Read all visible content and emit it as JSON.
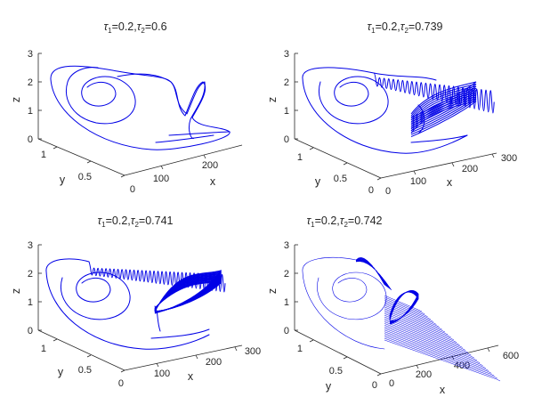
{
  "figure": {
    "background": "#ffffff",
    "trajectory_color": "#0000e6"
  },
  "chart_data": [
    {
      "type": "line3d",
      "title": "τ1=0.2,τ2=0.6",
      "title_parts": {
        "tau1_sym": "τ",
        "tau1_sub": "1",
        "tau1_val": "=0.2,",
        "tau2_sym": "τ",
        "tau2_sub": "2",
        "tau2_val": "=0.6"
      },
      "xlabel": "x",
      "ylabel": "y",
      "zlabel": "z",
      "xlim": [
        0,
        250
      ],
      "xticks": [
        0,
        100,
        200
      ],
      "xtick_labels": [
        "0",
        "100",
        "200"
      ],
      "ylim": [
        0,
        1.3
      ],
      "yticks": [
        0,
        0.5,
        1
      ],
      "ytick_labels": [
        "0",
        "0.5",
        "1"
      ],
      "zlim": [
        0,
        3
      ],
      "zticks": [
        0,
        1,
        2,
        3
      ],
      "ztick_labels": [
        "0",
        "1",
        "2",
        "3"
      ],
      "regime": "periodic (single tail excursion)",
      "spiral_x_range_approx": [
        0,
        230
      ]
    },
    {
      "type": "line3d",
      "title": "τ1=0.2,τ2=0.739",
      "title_parts": {
        "tau1_sym": "τ",
        "tau1_sub": "1",
        "tau1_val": "=0.2,",
        "tau2_sym": "τ",
        "tau2_sub": "2",
        "tau2_val": "=0.739"
      },
      "xlabel": "x",
      "ylabel": "y",
      "zlabel": "z",
      "xlim": [
        0,
        300
      ],
      "xticks": [
        0,
        100,
        200,
        300
      ],
      "xtick_labels": [
        "0",
        "100",
        "200",
        "300"
      ],
      "ylim": [
        0,
        1.3
      ],
      "yticks": [
        0,
        0.5,
        1
      ],
      "ytick_labels": [
        "0",
        "0.5",
        "1"
      ],
      "zlim": [
        0,
        3
      ],
      "zticks": [
        0,
        1,
        2,
        3
      ],
      "ztick_labels": [
        "0",
        "1",
        "2",
        "3"
      ],
      "regime": "dense oscillation near x≈150-250",
      "spiral_x_range_approx": [
        0,
        260
      ]
    },
    {
      "type": "line3d",
      "title": "τ1=0.2,τ2=0.741",
      "title_parts": {
        "tau1_sym": "τ",
        "tau1_sub": "1",
        "tau1_val": "=0.2,",
        "tau2_sym": "τ",
        "tau2_sub": "2",
        "tau2_val": "=0.741"
      },
      "xlabel": "x",
      "ylabel": "y",
      "zlabel": "z",
      "xlim": [
        0,
        300
      ],
      "xticks": [
        0,
        100,
        200,
        300
      ],
      "xtick_labels": [
        "0",
        "100",
        "200",
        "300"
      ],
      "ylim": [
        0,
        1.3
      ],
      "yticks": [
        0,
        0.5,
        1
      ],
      "ytick_labels": [
        "0",
        "0.5",
        "1"
      ],
      "zlim": [
        0,
        3
      ],
      "zticks": [
        0,
        1,
        2,
        3
      ],
      "ztick_labels": [
        "0",
        "1",
        "2",
        "3"
      ],
      "regime": "dense cone-shaped oscillation",
      "spiral_x_range_approx": [
        0,
        270
      ]
    },
    {
      "type": "line3d",
      "title": "τ1=0.2,τ2=0.742",
      "title_parts": {
        "tau1_sym": "τ",
        "tau1_sub": "1",
        "tau1_val": "=0.2,",
        "tau2_sym": "τ",
        "tau2_sub": "2",
        "tau2_val": "=0.742"
      },
      "xlabel": "x",
      "ylabel": "y",
      "zlabel": "z",
      "xlim": [
        0,
        650
      ],
      "xticks": [
        0,
        200,
        400,
        600
      ],
      "xtick_labels": [
        "0",
        "200",
        "400",
        "600"
      ],
      "ylim": [
        0,
        1.3
      ],
      "yticks": [
        0,
        0.5,
        1
      ],
      "ytick_labels": [
        "0",
        "0.5",
        "1"
      ],
      "zlim": [
        0,
        3
      ],
      "zticks": [
        0,
        1,
        2,
        3
      ],
      "ztick_labels": [
        "0",
        "1",
        "2",
        "3"
      ],
      "regime": "fan of rays diverging to x≈650",
      "spiral_x_range_approx": [
        0,
        650
      ]
    }
  ]
}
